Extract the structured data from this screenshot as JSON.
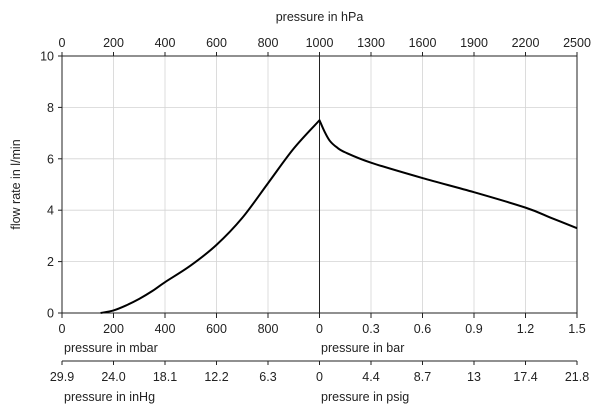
{
  "chart_data": {
    "type": "line",
    "ylabel": "flow rate in l/min",
    "ylim": [
      0,
      10
    ],
    "y_ticks": [
      "0",
      "2",
      "4",
      "6",
      "8",
      "10"
    ],
    "grid": true,
    "top_axis": {
      "label": "pressure in hPa",
      "ticks": [
        "0",
        "200",
        "400",
        "600",
        "800",
        "1000",
        "1300",
        "1600",
        "1900",
        "2200",
        "2500"
      ]
    },
    "bottom_axes": [
      {
        "left_label": "pressure in mbar",
        "right_label": "pressure in bar",
        "left_ticks": [
          "0",
          "200",
          "400",
          "600",
          "800"
        ],
        "right_ticks": [
          "0",
          "0.3",
          "0.6",
          "0.9",
          "1.2",
          "1.5"
        ]
      },
      {
        "left_label": "pressure in inHg",
        "right_label": "pressure in psig",
        "left_ticks": [
          "29.9",
          "24.0",
          "18.1",
          "12.2",
          "6.3"
        ],
        "right_ticks": [
          "0",
          "4.4",
          "8.7",
          "13",
          "17.4",
          "21.8"
        ]
      }
    ],
    "series": [
      {
        "x_unit": "hPa",
        "points": [
          [
            150,
            0
          ],
          [
            200,
            0.1
          ],
          [
            250,
            0.3
          ],
          [
            300,
            0.55
          ],
          [
            350,
            0.85
          ],
          [
            400,
            1.2
          ],
          [
            500,
            1.85
          ],
          [
            600,
            2.65
          ],
          [
            700,
            3.7
          ],
          [
            800,
            5.05
          ],
          [
            900,
            6.4
          ],
          [
            1000,
            7.5
          ],
          [
            1030,
            7.05
          ],
          [
            1060,
            6.7
          ],
          [
            1100,
            6.45
          ],
          [
            1150,
            6.25
          ],
          [
            1300,
            5.85
          ],
          [
            1600,
            5.25
          ],
          [
            1900,
            4.7
          ],
          [
            2200,
            4.1
          ],
          [
            2350,
            3.7
          ],
          [
            2500,
            3.3
          ]
        ]
      }
    ]
  }
}
